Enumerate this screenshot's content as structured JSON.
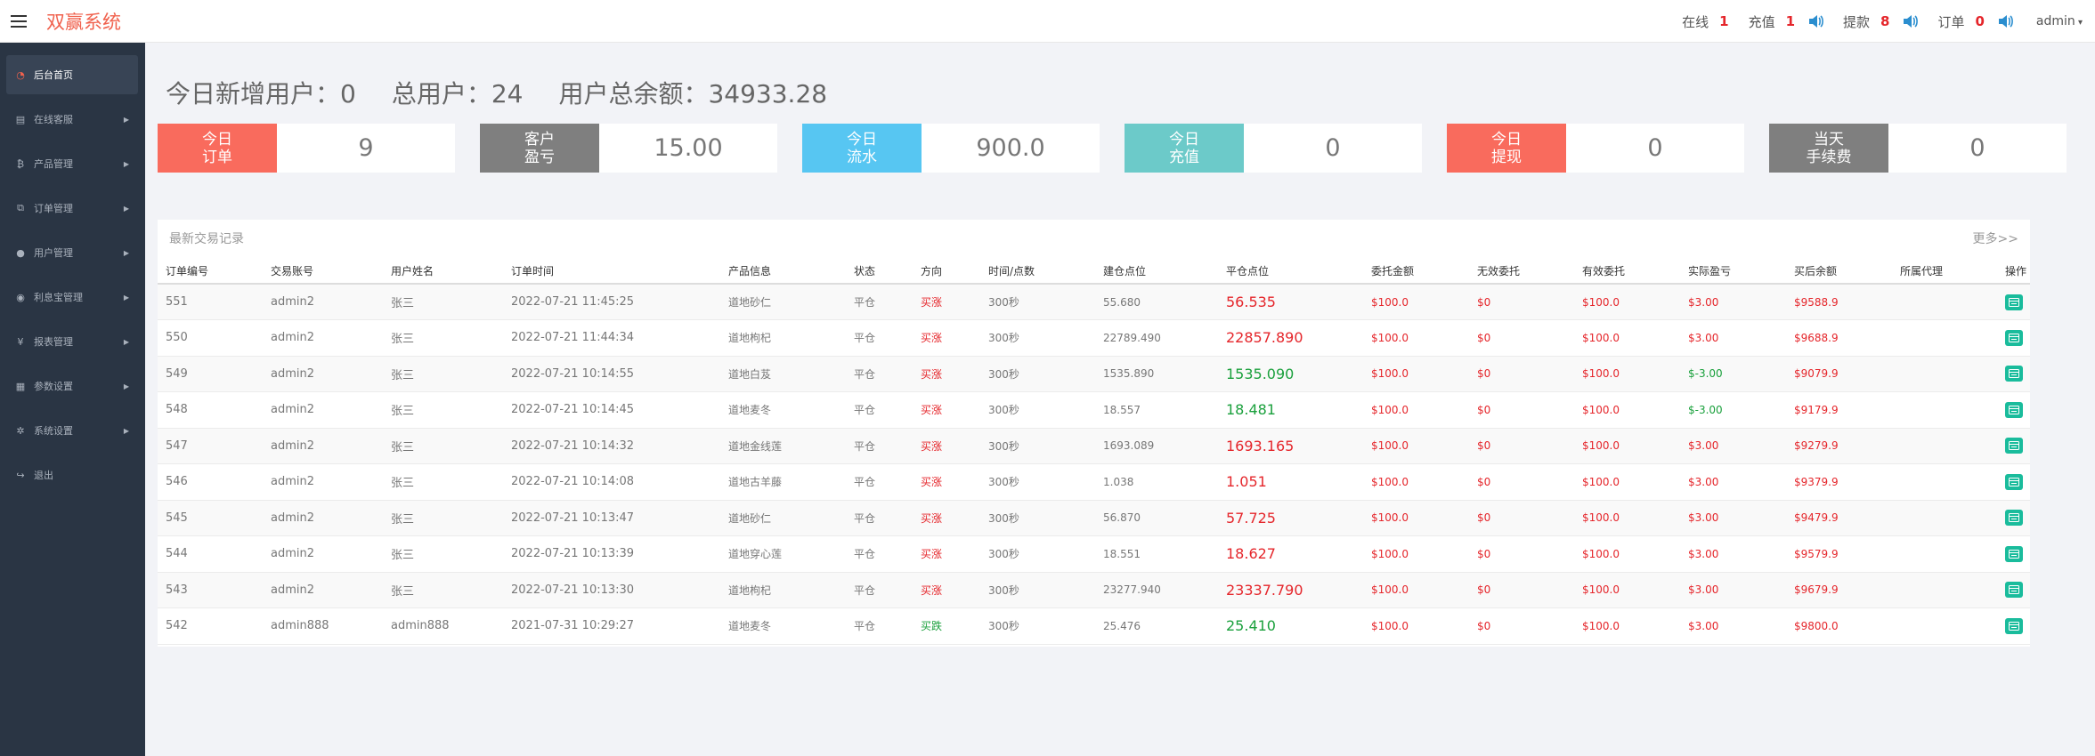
{
  "header": {
    "brand": "双赢系统",
    "stats": [
      {
        "label": "在线",
        "value": "1",
        "speaker": false
      },
      {
        "label": "充值",
        "value": "1",
        "speaker": true
      },
      {
        "label": "提款",
        "value": "8",
        "speaker": true
      },
      {
        "label": "订单",
        "value": "0",
        "speaker": true
      }
    ],
    "user": "admin"
  },
  "sidebar": {
    "items": [
      {
        "label": "后台首页",
        "icon": "dashboard-icon",
        "active": true,
        "arrow": false
      },
      {
        "label": "在线客服",
        "icon": "book-icon",
        "active": false,
        "arrow": true
      },
      {
        "label": "产品管理",
        "icon": "bitcoin-icon",
        "active": false,
        "arrow": true
      },
      {
        "label": "订单管理",
        "icon": "copy-icon",
        "active": false,
        "arrow": true
      },
      {
        "label": "用户管理",
        "icon": "user-icon",
        "active": false,
        "arrow": true
      },
      {
        "label": "利息宝管理",
        "icon": "dollar-circle-icon",
        "active": false,
        "arrow": true
      },
      {
        "label": "报表管理",
        "icon": "yen-icon",
        "active": false,
        "arrow": true
      },
      {
        "label": "参数设置",
        "icon": "files-icon",
        "active": false,
        "arrow": true
      },
      {
        "label": "系统设置",
        "icon": "cogs-icon",
        "active": false,
        "arrow": true
      },
      {
        "label": "退出",
        "icon": "sign-out-icon",
        "active": false,
        "arrow": false
      }
    ]
  },
  "summary": {
    "new_users": "今日新增用户：0",
    "total_users": "总用户：24",
    "total_balance": "用户总余额：34933.28"
  },
  "cards": [
    {
      "label_lines": [
        "今日",
        "订单"
      ],
      "value": "9",
      "color": "#f96b5d"
    },
    {
      "label_lines": [
        "客户",
        "盈亏"
      ],
      "value": "15.00",
      "color": "#7f7f7f"
    },
    {
      "label_lines": [
        "今日",
        "流水"
      ],
      "value": "900.0",
      "color": "#57c6f2"
    },
    {
      "label_lines": [
        "今日",
        "充值"
      ],
      "value": "0",
      "color": "#6ccac9"
    },
    {
      "label_lines": [
        "今日",
        "提现"
      ],
      "value": "0",
      "color": "#f96b5d"
    },
    {
      "label_lines": [
        "当天",
        "手续费"
      ],
      "value": "0",
      "color": "#7f7f7f"
    }
  ],
  "panel": {
    "title": "最新交易记录",
    "more": "更多>>"
  },
  "table": {
    "headers": [
      "订单编号",
      "交易账号",
      "用户姓名",
      "订单时间",
      "产品信息",
      "状态",
      "方向",
      "时间/点数",
      "建仓点位",
      "平仓点位",
      "委托金额",
      "无效委托",
      "有效委托",
      "实际盈亏",
      "买后余额",
      "所属代理",
      "操作"
    ],
    "rows": [
      {
        "id": "551",
        "account": "admin2",
        "name": "张三",
        "time": "2022-07-21 11:45:25",
        "product": "道地砂仁",
        "status": "平仓",
        "direction": "买涨",
        "dir_up": true,
        "duration": "300秒",
        "open": "55.680",
        "close": "56.535",
        "close_up": true,
        "amount": "$100.0",
        "invalid": "$0",
        "valid": "$100.0",
        "profit": "$3.00",
        "profit_pos": true,
        "balance": "$9588.9",
        "agent": ""
      },
      {
        "id": "550",
        "account": "admin2",
        "name": "张三",
        "time": "2022-07-21 11:44:34",
        "product": "道地枸杞",
        "status": "平仓",
        "direction": "买涨",
        "dir_up": true,
        "duration": "300秒",
        "open": "22789.490",
        "close": "22857.890",
        "close_up": true,
        "amount": "$100.0",
        "invalid": "$0",
        "valid": "$100.0",
        "profit": "$3.00",
        "profit_pos": true,
        "balance": "$9688.9",
        "agent": ""
      },
      {
        "id": "549",
        "account": "admin2",
        "name": "张三",
        "time": "2022-07-21 10:14:55",
        "product": "道地白芨",
        "status": "平仓",
        "direction": "买涨",
        "dir_up": true,
        "duration": "300秒",
        "open": "1535.890",
        "close": "1535.090",
        "close_up": false,
        "amount": "$100.0",
        "invalid": "$0",
        "valid": "$100.0",
        "profit": "$-3.00",
        "profit_pos": false,
        "balance": "$9079.9",
        "agent": ""
      },
      {
        "id": "548",
        "account": "admin2",
        "name": "张三",
        "time": "2022-07-21 10:14:45",
        "product": "道地麦冬",
        "status": "平仓",
        "direction": "买涨",
        "dir_up": true,
        "duration": "300秒",
        "open": "18.557",
        "close": "18.481",
        "close_up": false,
        "amount": "$100.0",
        "invalid": "$0",
        "valid": "$100.0",
        "profit": "$-3.00",
        "profit_pos": false,
        "balance": "$9179.9",
        "agent": ""
      },
      {
        "id": "547",
        "account": "admin2",
        "name": "张三",
        "time": "2022-07-21 10:14:32",
        "product": "道地金线莲",
        "status": "平仓",
        "direction": "买涨",
        "dir_up": true,
        "duration": "300秒",
        "open": "1693.089",
        "close": "1693.165",
        "close_up": true,
        "amount": "$100.0",
        "invalid": "$0",
        "valid": "$100.0",
        "profit": "$3.00",
        "profit_pos": true,
        "balance": "$9279.9",
        "agent": ""
      },
      {
        "id": "546",
        "account": "admin2",
        "name": "张三",
        "time": "2022-07-21 10:14:08",
        "product": "道地古羊藤",
        "status": "平仓",
        "direction": "买涨",
        "dir_up": true,
        "duration": "300秒",
        "open": "1.038",
        "close": "1.051",
        "close_up": true,
        "amount": "$100.0",
        "invalid": "$0",
        "valid": "$100.0",
        "profit": "$3.00",
        "profit_pos": true,
        "balance": "$9379.9",
        "agent": ""
      },
      {
        "id": "545",
        "account": "admin2",
        "name": "张三",
        "time": "2022-07-21 10:13:47",
        "product": "道地砂仁",
        "status": "平仓",
        "direction": "买涨",
        "dir_up": true,
        "duration": "300秒",
        "open": "56.870",
        "close": "57.725",
        "close_up": true,
        "amount": "$100.0",
        "invalid": "$0",
        "valid": "$100.0",
        "profit": "$3.00",
        "profit_pos": true,
        "balance": "$9479.9",
        "agent": ""
      },
      {
        "id": "544",
        "account": "admin2",
        "name": "张三",
        "time": "2022-07-21 10:13:39",
        "product": "道地穿心莲",
        "status": "平仓",
        "direction": "买涨",
        "dir_up": true,
        "duration": "300秒",
        "open": "18.551",
        "close": "18.627",
        "close_up": true,
        "amount": "$100.0",
        "invalid": "$0",
        "valid": "$100.0",
        "profit": "$3.00",
        "profit_pos": true,
        "balance": "$9579.9",
        "agent": ""
      },
      {
        "id": "543",
        "account": "admin2",
        "name": "张三",
        "time": "2022-07-21 10:13:30",
        "product": "道地枸杞",
        "status": "平仓",
        "direction": "买涨",
        "dir_up": true,
        "duration": "300秒",
        "open": "23277.940",
        "close": "23337.790",
        "close_up": true,
        "amount": "$100.0",
        "invalid": "$0",
        "valid": "$100.0",
        "profit": "$3.00",
        "profit_pos": true,
        "balance": "$9679.9",
        "agent": ""
      },
      {
        "id": "542",
        "account": "admin888",
        "name": "admin888",
        "time": "2021-07-31 10:29:27",
        "product": "道地麦冬",
        "status": "平仓",
        "direction": "买跌",
        "dir_up": false,
        "duration": "300秒",
        "open": "25.476",
        "close": "25.410",
        "close_up": false,
        "amount": "$100.0",
        "invalid": "$0",
        "valid": "$100.0",
        "profit": "$3.00",
        "profit_pos": true,
        "balance": "$9800.0",
        "agent": ""
      }
    ]
  },
  "colors": {
    "brand": "#f0614d",
    "up": "#e5262b",
    "down": "#1aa03c",
    "sidebar": "#2a3544",
    "action": "#1abc9c"
  }
}
